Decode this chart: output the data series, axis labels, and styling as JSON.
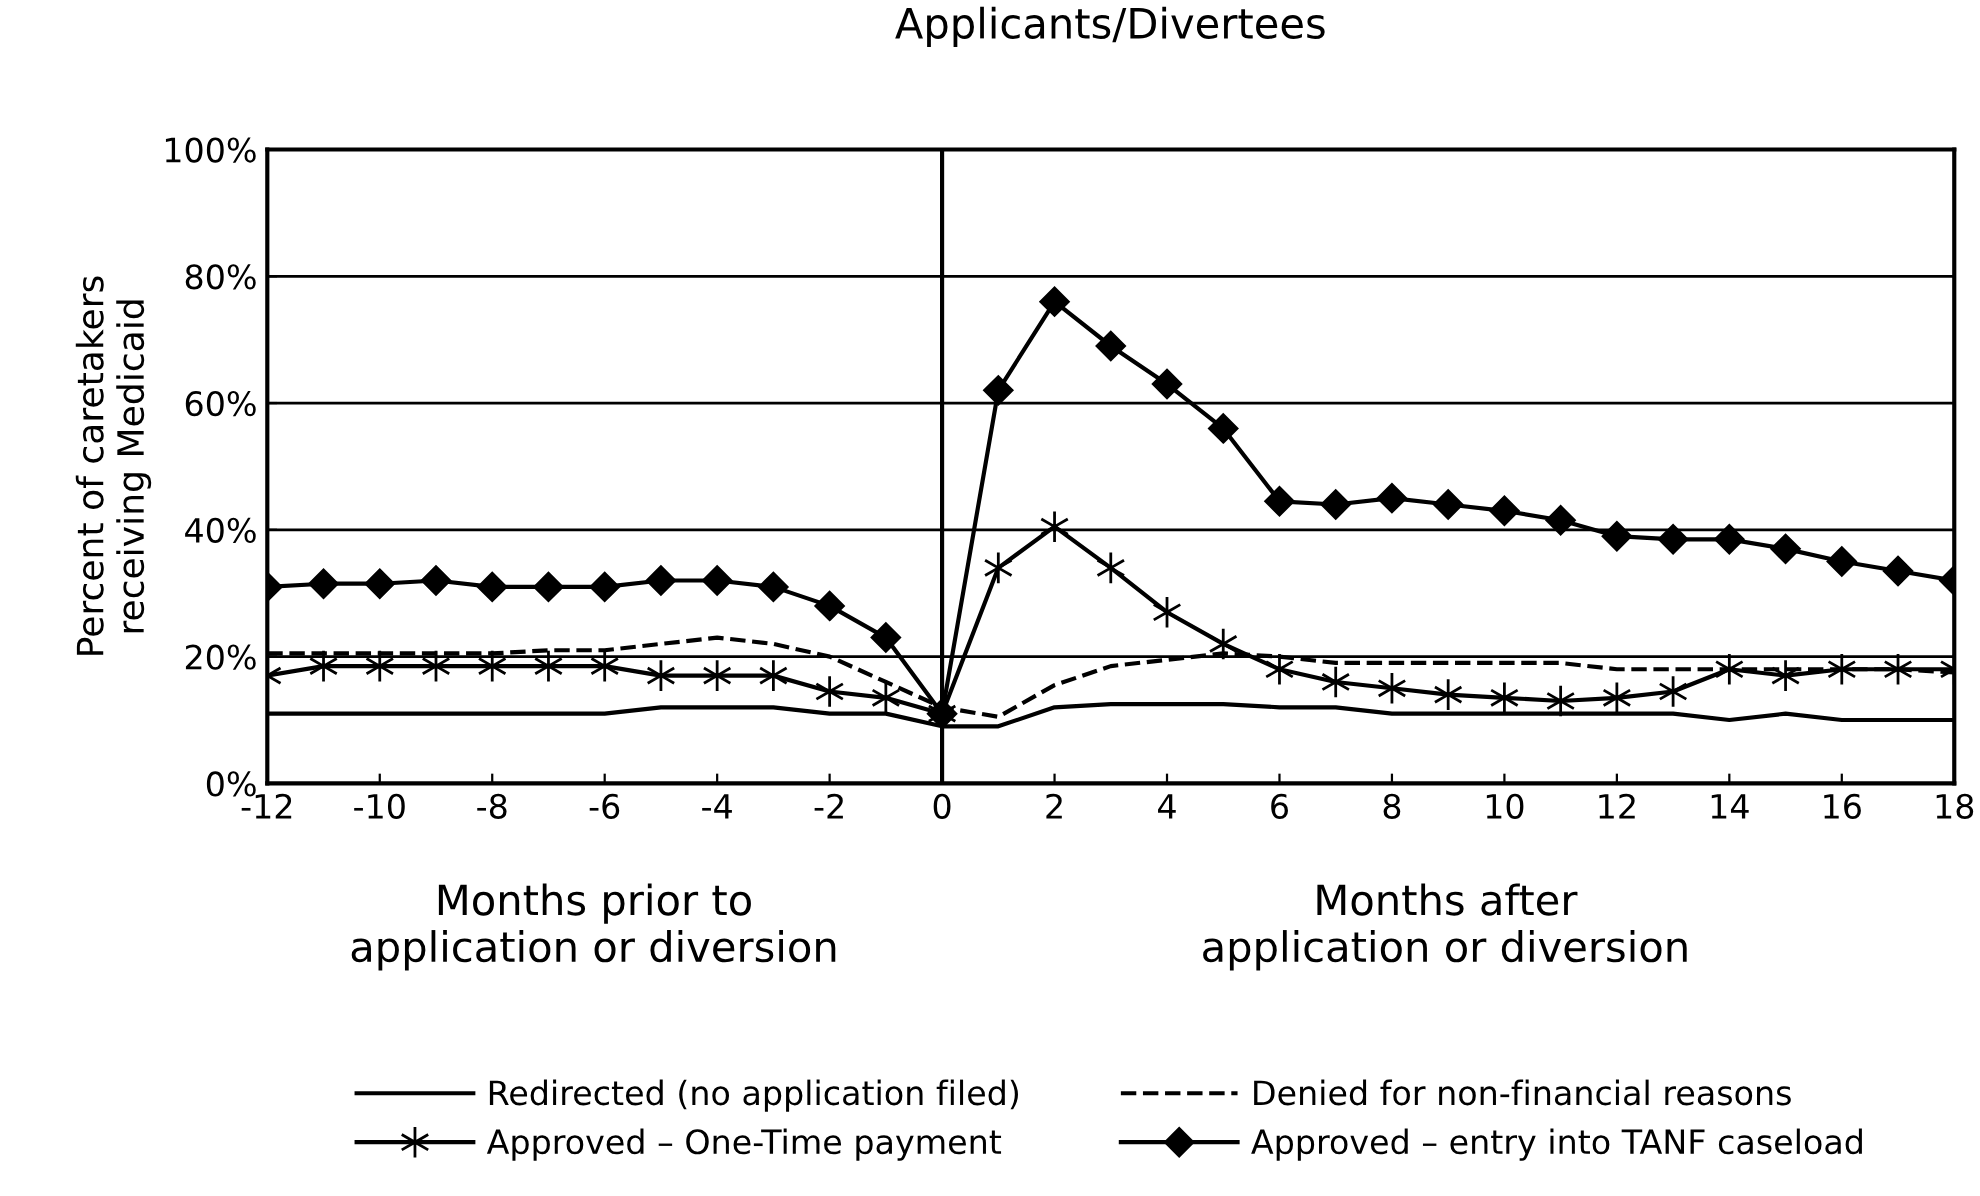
{
  "chart_data": {
    "type": "line",
    "title": "Applicants/Divertees",
    "ylabel": "Percent of caretakers\nreceiving Medicaid",
    "x": [
      -12,
      -11,
      -10,
      -9,
      -8,
      -7,
      -6,
      -5,
      -4,
      -3,
      -2,
      -1,
      0,
      1,
      2,
      3,
      4,
      5,
      6,
      7,
      8,
      9,
      10,
      11,
      12,
      13,
      14,
      15,
      16,
      17,
      18
    ],
    "series": [
      {
        "name": "Redirected (no application filed)",
        "color": "#000000",
        "line_style": "solid",
        "marker": "none",
        "values": [
          11,
          11,
          11,
          11,
          11,
          11,
          11,
          12,
          12,
          12,
          11,
          11,
          9,
          9,
          12,
          12.5,
          12.5,
          12.5,
          12,
          12,
          11,
          11,
          11,
          11,
          11,
          11,
          10,
          11,
          10,
          10,
          10
        ]
      },
      {
        "name": "Denied for non-financial reasons",
        "color": "#000000",
        "line_style": "dashed",
        "marker": "none",
        "values": [
          20.5,
          20.5,
          20.5,
          20.5,
          20.5,
          21,
          21,
          22,
          23,
          22,
          20,
          16,
          12,
          10.5,
          15.5,
          18.5,
          19.5,
          20.5,
          20,
          19,
          19,
          19,
          19,
          19,
          18,
          18,
          18,
          18,
          18,
          18,
          17.5
        ]
      },
      {
        "name": "Approved – One-Time payment",
        "color": "#000000",
        "line_style": "solid",
        "marker": "cross",
        "values": [
          17,
          18.5,
          18.5,
          18.5,
          18.5,
          18.5,
          18.5,
          17,
          17,
          17,
          14.5,
          13.5,
          11,
          34,
          40.5,
          34,
          27,
          22,
          18,
          16,
          15,
          14,
          13.5,
          13,
          13.5,
          14.5,
          18,
          17,
          18,
          18,
          18
        ]
      },
      {
        "name": "Approved – entry into TANF caseload",
        "color": "#000000",
        "line_style": "solid",
        "marker": "diamond",
        "values": [
          31,
          31.5,
          31.5,
          32,
          31,
          31,
          31,
          32,
          32,
          31,
          28,
          23,
          11,
          62,
          76,
          69,
          63,
          56,
          44.5,
          44,
          45,
          44,
          43,
          41.5,
          39,
          38.5,
          38.5,
          37,
          35,
          33.5,
          32
        ]
      }
    ],
    "xlim": [
      -12,
      18
    ],
    "xticks": [
      -12,
      -10,
      -8,
      -6,
      -4,
      -2,
      0,
      2,
      4,
      6,
      8,
      10,
      12,
      14,
      16,
      18
    ],
    "ylim": [
      0,
      100
    ],
    "yticks": [
      {
        "value": 0,
        "label": "0%"
      },
      {
        "value": 20,
        "label": "20%"
      },
      {
        "value": 40,
        "label": "40%"
      },
      {
        "value": 60,
        "label": "60%"
      },
      {
        "value": 80,
        "label": "80%"
      },
      {
        "value": 100,
        "label": "100%"
      }
    ],
    "grid": "y",
    "legend": "bottom",
    "ref_lines": [
      {
        "axis": "x",
        "value": 0,
        "color": "#000000",
        "line_style": "solid"
      }
    ],
    "annotations": [
      "Months prior to\napplication or diversion",
      "Months after\napplication or diversion"
    ]
  }
}
